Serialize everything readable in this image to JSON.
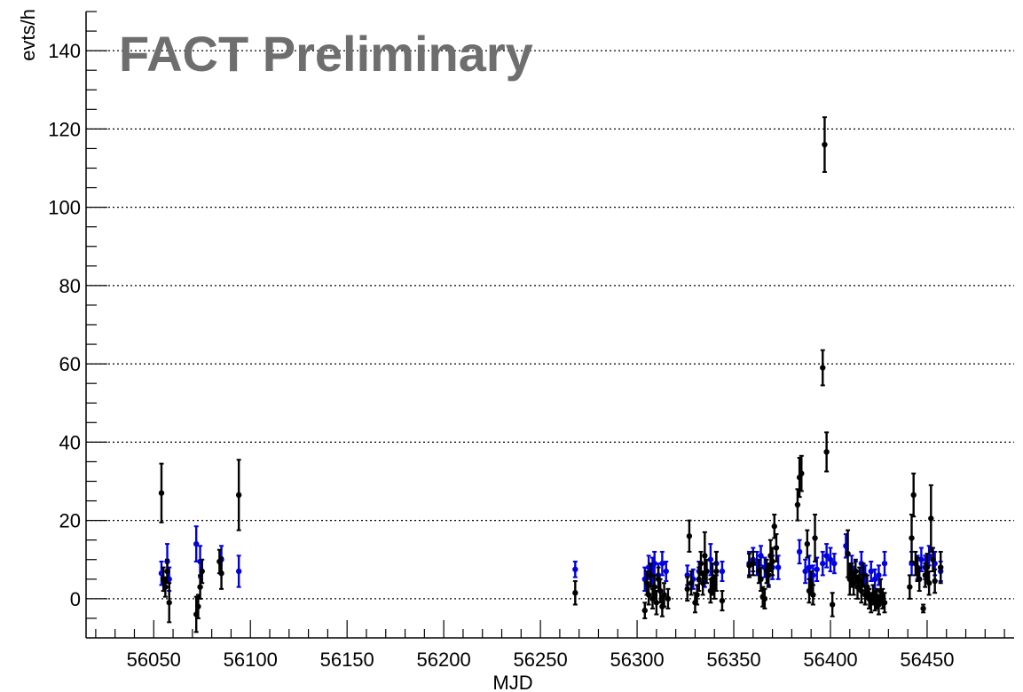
{
  "chart_data": {
    "type": "scatter",
    "watermark": "FACT Preliminary",
    "xlabel": "MJD",
    "ylabel": "evts/h",
    "xlim": [
      56015,
      56495
    ],
    "ylim": [
      -10,
      150
    ],
    "x_ticks": [
      56050,
      56100,
      56150,
      56200,
      56250,
      56300,
      56350,
      56400,
      56450
    ],
    "y_ticks": [
      0,
      20,
      40,
      60,
      80,
      100,
      120,
      140
    ],
    "grid_y": true,
    "error_bars": true,
    "colors": {
      "series_1": "#000000",
      "series_2": "#0000e0",
      "grid": "#000000"
    },
    "series": [
      {
        "color": "#000000",
        "points": [
          {
            "x": 56054,
            "y": 27,
            "err": 7.5
          },
          {
            "x": 56055,
            "y": 5,
            "err": 3
          },
          {
            "x": 56056,
            "y": 3,
            "err": 2.5
          },
          {
            "x": 56057,
            "y": 7,
            "err": 3
          },
          {
            "x": 56058,
            "y": -1,
            "err": 5
          },
          {
            "x": 56072,
            "y": -4,
            "err": 4.5
          },
          {
            "x": 56073,
            "y": -2,
            "err": 3
          },
          {
            "x": 56074,
            "y": 3,
            "err": 3
          },
          {
            "x": 56075,
            "y": 7,
            "err": 3
          },
          {
            "x": 56084,
            "y": 9.5,
            "err": 3
          },
          {
            "x": 56085,
            "y": 6.5,
            "err": 4
          },
          {
            "x": 56094,
            "y": 26.5,
            "err": 9
          },
          {
            "x": 56268,
            "y": 1.5,
            "err": 3
          },
          {
            "x": 56304,
            "y": -3,
            "err": 2
          },
          {
            "x": 56305,
            "y": 4,
            "err": 3
          },
          {
            "x": 56306,
            "y": 1,
            "err": 2.5
          },
          {
            "x": 56307,
            "y": 6,
            "err": 3
          },
          {
            "x": 56308,
            "y": 0,
            "err": 2.5
          },
          {
            "x": 56309,
            "y": 3,
            "err": 3
          },
          {
            "x": 56310,
            "y": -1,
            "err": 3
          },
          {
            "x": 56311,
            "y": 5,
            "err": 3
          },
          {
            "x": 56312,
            "y": 2,
            "err": 3
          },
          {
            "x": 56313,
            "y": -2,
            "err": 2.5
          },
          {
            "x": 56314,
            "y": 1,
            "err": 3
          },
          {
            "x": 56316,
            "y": 0,
            "err": 2.5
          },
          {
            "x": 56326,
            "y": 2.5,
            "err": 3
          },
          {
            "x": 56327,
            "y": 16,
            "err": 4
          },
          {
            "x": 56328,
            "y": 4,
            "err": 3
          },
          {
            "x": 56330,
            "y": -1,
            "err": 2.5
          },
          {
            "x": 56331,
            "y": 1,
            "err": 2.5
          },
          {
            "x": 56332,
            "y": 5,
            "err": 3
          },
          {
            "x": 56333,
            "y": 9,
            "err": 3
          },
          {
            "x": 56334,
            "y": 4,
            "err": 3
          },
          {
            "x": 56335,
            "y": 11,
            "err": 6
          },
          {
            "x": 56336,
            "y": 7,
            "err": 3
          },
          {
            "x": 56338,
            "y": 2,
            "err": 3
          },
          {
            "x": 56339,
            "y": 5,
            "err": 4
          },
          {
            "x": 56340,
            "y": 3,
            "err": 3
          },
          {
            "x": 56341,
            "y": 7,
            "err": 5
          },
          {
            "x": 56344,
            "y": -0.5,
            "err": 2.5
          },
          {
            "x": 56358,
            "y": 8.5,
            "err": 3
          },
          {
            "x": 56360,
            "y": 9,
            "err": 3
          },
          {
            "x": 56363,
            "y": 7,
            "err": 3
          },
          {
            "x": 56364,
            "y": 5,
            "err": 3
          },
          {
            "x": 56365,
            "y": 0.5,
            "err": 2.5
          },
          {
            "x": 56366,
            "y": 0,
            "err": 2.5
          },
          {
            "x": 56367,
            "y": 7,
            "err": 3
          },
          {
            "x": 56368,
            "y": 6,
            "err": 3
          },
          {
            "x": 56369,
            "y": 11,
            "err": 4
          },
          {
            "x": 56370,
            "y": 9.5,
            "err": 3.5
          },
          {
            "x": 56371,
            "y": 18.5,
            "err": 3
          },
          {
            "x": 56372,
            "y": 13,
            "err": 3.5
          },
          {
            "x": 56383,
            "y": 24,
            "err": 4
          },
          {
            "x": 56384,
            "y": 31,
            "err": 5
          },
          {
            "x": 56385,
            "y": 32,
            "err": 4.5
          },
          {
            "x": 56388,
            "y": 14,
            "err": 3.5
          },
          {
            "x": 56389,
            "y": 2,
            "err": 3
          },
          {
            "x": 56390,
            "y": 4,
            "err": 3
          },
          {
            "x": 56391,
            "y": 1,
            "err": 2.5
          },
          {
            "x": 56392,
            "y": 15.5,
            "err": 6
          },
          {
            "x": 56396,
            "y": 59,
            "err": 4.5
          },
          {
            "x": 56397,
            "y": 116,
            "err": 7
          },
          {
            "x": 56398,
            "y": 37.5,
            "err": 5
          },
          {
            "x": 56401,
            "y": -1.5,
            "err": 3
          },
          {
            "x": 56409,
            "y": 11.5,
            "err": 6
          },
          {
            "x": 56410,
            "y": 5,
            "err": 4
          },
          {
            "x": 56411,
            "y": 6,
            "err": 3
          },
          {
            "x": 56412,
            "y": 4,
            "err": 3
          },
          {
            "x": 56413,
            "y": 7,
            "err": 3
          },
          {
            "x": 56414,
            "y": 3,
            "err": 3
          },
          {
            "x": 56415,
            "y": 5,
            "err": 3
          },
          {
            "x": 56416,
            "y": 2,
            "err": 3
          },
          {
            "x": 56417,
            "y": 6,
            "err": 3
          },
          {
            "x": 56418,
            "y": 1,
            "err": 2.5
          },
          {
            "x": 56419,
            "y": 3,
            "err": 3
          },
          {
            "x": 56420,
            "y": 0,
            "err": 2.5
          },
          {
            "x": 56421,
            "y": -1,
            "err": 2.5
          },
          {
            "x": 56422,
            "y": 1,
            "err": 2.5
          },
          {
            "x": 56423,
            "y": -0.5,
            "err": 2.5
          },
          {
            "x": 56424,
            "y": 0,
            "err": 2.5
          },
          {
            "x": 56425,
            "y": -1.5,
            "err": 2.5
          },
          {
            "x": 56426,
            "y": 2,
            "err": 3
          },
          {
            "x": 56427,
            "y": 0,
            "err": 2.5
          },
          {
            "x": 56428,
            "y": -1,
            "err": 2.5
          },
          {
            "x": 56441,
            "y": 3,
            "err": 3
          },
          {
            "x": 56442,
            "y": 15.5,
            "err": 6
          },
          {
            "x": 56443,
            "y": 26.5,
            "err": 5.5
          },
          {
            "x": 56444,
            "y": 9,
            "err": 3
          },
          {
            "x": 56445,
            "y": 7.5,
            "err": 3
          },
          {
            "x": 56446,
            "y": 5,
            "err": 3
          },
          {
            "x": 56448,
            "y": -2.5,
            "err": 1
          },
          {
            "x": 56449,
            "y": 6,
            "err": 3
          },
          {
            "x": 56450,
            "y": 8,
            "err": 3.5
          },
          {
            "x": 56451,
            "y": 4,
            "err": 3
          },
          {
            "x": 56452,
            "y": 20.5,
            "err": 8.5
          },
          {
            "x": 56453,
            "y": 10,
            "err": 3
          },
          {
            "x": 56454,
            "y": 4.5,
            "err": 3
          },
          {
            "x": 56457,
            "y": 8,
            "err": 4
          }
        ]
      },
      {
        "color": "#0000e0",
        "points": [
          {
            "x": 56054,
            "y": 6.5,
            "err": 3
          },
          {
            "x": 56057,
            "y": 9.5,
            "err": 4.5
          },
          {
            "x": 56058,
            "y": 5,
            "err": 3
          },
          {
            "x": 56072,
            "y": 14,
            "err": 4.5
          },
          {
            "x": 56074,
            "y": 9.5,
            "err": 4
          },
          {
            "x": 56085,
            "y": 10,
            "err": 3.5
          },
          {
            "x": 56094,
            "y": 7,
            "err": 4
          },
          {
            "x": 56268,
            "y": 7.5,
            "err": 2
          },
          {
            "x": 56304,
            "y": 5,
            "err": 3
          },
          {
            "x": 56306,
            "y": 8,
            "err": 3
          },
          {
            "x": 56308,
            "y": 7,
            "err": 3.5
          },
          {
            "x": 56309,
            "y": 9,
            "err": 3
          },
          {
            "x": 56311,
            "y": 6,
            "err": 3
          },
          {
            "x": 56313,
            "y": 9,
            "err": 3
          },
          {
            "x": 56315,
            "y": 7,
            "err": 2.5
          },
          {
            "x": 56326,
            "y": 6,
            "err": 2.5
          },
          {
            "x": 56329,
            "y": 5,
            "err": 2.5
          },
          {
            "x": 56332,
            "y": 7,
            "err": 2.5
          },
          {
            "x": 56335,
            "y": 6,
            "err": 3
          },
          {
            "x": 56338,
            "y": 10,
            "err": 4
          },
          {
            "x": 56341,
            "y": 9,
            "err": 3
          },
          {
            "x": 56344,
            "y": 7,
            "err": 2.5
          },
          {
            "x": 56358,
            "y": 9,
            "err": 3
          },
          {
            "x": 56360,
            "y": 10,
            "err": 3
          },
          {
            "x": 56362,
            "y": 9,
            "err": 3
          },
          {
            "x": 56364,
            "y": 11,
            "err": 2.5
          },
          {
            "x": 56366,
            "y": 8,
            "err": 2.5
          },
          {
            "x": 56368,
            "y": 6,
            "err": 2.5
          },
          {
            "x": 56370,
            "y": 8,
            "err": 3
          },
          {
            "x": 56373,
            "y": 8,
            "err": 3
          },
          {
            "x": 56384,
            "y": 12,
            "err": 3
          },
          {
            "x": 56387,
            "y": 7,
            "err": 3
          },
          {
            "x": 56389,
            "y": 8,
            "err": 3
          },
          {
            "x": 56391,
            "y": 6,
            "err": 2.5
          },
          {
            "x": 56393,
            "y": 7.5,
            "err": 3
          },
          {
            "x": 56396,
            "y": 9,
            "err": 3
          },
          {
            "x": 56398,
            "y": 11,
            "err": 3
          },
          {
            "x": 56400,
            "y": 10,
            "err": 3
          },
          {
            "x": 56402,
            "y": 9,
            "err": 2.5
          },
          {
            "x": 56408,
            "y": 13.5,
            "err": 3
          },
          {
            "x": 56411,
            "y": 8,
            "err": 3
          },
          {
            "x": 56413,
            "y": 7,
            "err": 2.5
          },
          {
            "x": 56416,
            "y": 9,
            "err": 3
          },
          {
            "x": 56418,
            "y": 6,
            "err": 2.5
          },
          {
            "x": 56421,
            "y": 7,
            "err": 2.5
          },
          {
            "x": 56423,
            "y": 5,
            "err": 2.5
          },
          {
            "x": 56425,
            "y": 6,
            "err": 2.5
          },
          {
            "x": 56428,
            "y": 9,
            "err": 3
          },
          {
            "x": 56442,
            "y": 9,
            "err": 3
          },
          {
            "x": 56445,
            "y": 8,
            "err": 3
          },
          {
            "x": 56447,
            "y": 10,
            "err": 3
          },
          {
            "x": 56449,
            "y": 8,
            "err": 3
          },
          {
            "x": 56451,
            "y": 11,
            "err": 2.5
          },
          {
            "x": 56454,
            "y": 9,
            "err": 3
          },
          {
            "x": 56457,
            "y": 7,
            "err": 2.5
          }
        ]
      }
    ]
  }
}
